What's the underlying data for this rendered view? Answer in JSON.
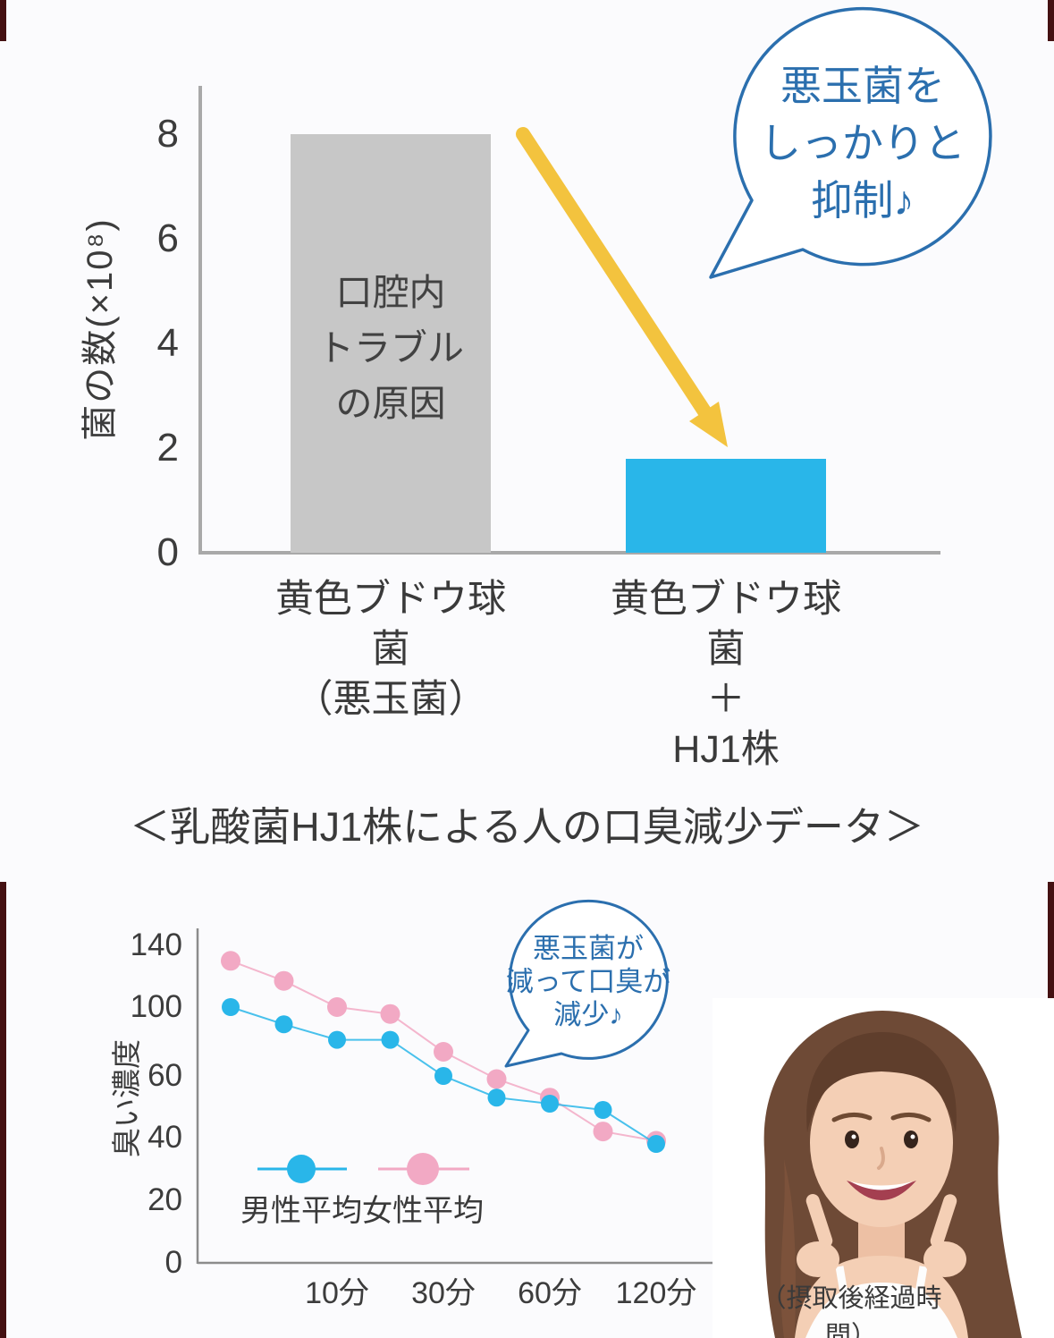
{
  "edge_color": "#441112",
  "chart_data": [
    {
      "type": "bar",
      "name": "staph-suppression-bar-chart",
      "ylabel": "菌の数(×10⁸)",
      "yticks": [
        8,
        6,
        4,
        2,
        0
      ],
      "ylim": [
        0,
        8
      ],
      "grid": false,
      "categories": [
        "黄色ブドウ球菌（悪玉菌）",
        "黄色ブドウ球菌＋HJ1株"
      ],
      "values": [
        8,
        1.8
      ],
      "bar_colors": [
        "#c7c7c7",
        "#29b6e9"
      ],
      "bar_annotation_lines": [
        "口腔内",
        "トラブル",
        "の原因"
      ],
      "category_lines": [
        [
          "黄色ブドウ球菌",
          "（悪玉菌）"
        ],
        [
          "黄色ブドウ球菌",
          "＋",
          "HJ1株"
        ]
      ],
      "callout_lines": [
        "悪玉菌を",
        "しっかりと",
        "抑制♪"
      ],
      "callout_color": "#2b6fae",
      "arrow_color": "#f3c33e"
    },
    {
      "type": "line",
      "name": "breath-odor-line-chart",
      "title": "＜乳酸菌HJ1株による人の口臭減少データ＞",
      "ylabel": "臭い濃度",
      "yticks": [
        140,
        100,
        60,
        40,
        20,
        0
      ],
      "x_tick_labels": [
        "10分",
        "30分",
        "60分",
        "120分"
      ],
      "x_tick_point_indices": [
        2,
        4,
        6,
        8
      ],
      "x_note": "（摂取後経過時間）",
      "legend_position": "lower-left",
      "series": [
        {
          "name": "男性平均",
          "color": "#29b6e9",
          "values": [
            100,
            90,
            81,
            81,
            60,
            53,
            51,
            49,
            38
          ]
        },
        {
          "name": "女性平均",
          "color": "#f2a9c4",
          "values": [
            130,
            117,
            100,
            96,
            74,
            59,
            53,
            42,
            39
          ]
        }
      ],
      "callout_lines": [
        "悪玉菌が",
        "減って口臭が",
        "減少♪"
      ],
      "callout_color": "#2b6fae"
    }
  ]
}
